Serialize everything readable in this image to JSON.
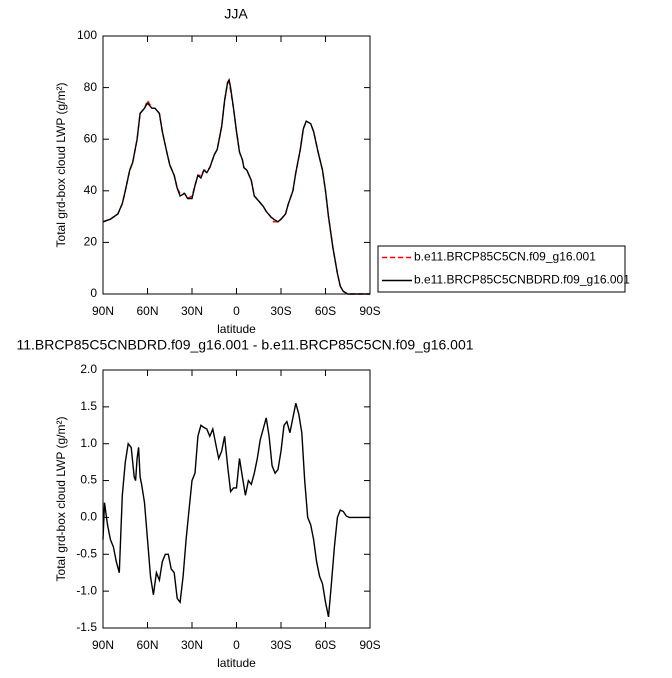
{
  "chart_data": [
    {
      "type": "line",
      "title": "JJA",
      "xlabel": "latitude",
      "ylabel": "Total grd-box cloud LWP (g/m²)",
      "x": [
        90,
        85,
        80,
        77,
        75,
        72,
        70,
        67,
        65,
        62,
        60,
        57,
        55,
        52,
        50,
        47,
        45,
        42,
        40,
        38,
        35,
        33,
        30,
        28,
        26,
        24,
        22,
        20,
        18,
        15,
        13,
        10,
        8,
        6,
        5,
        4,
        2,
        0,
        -2,
        -4,
        -5,
        -7,
        -10,
        -12,
        -15,
        -18,
        -20,
        -23,
        -25,
        -28,
        -30,
        -33,
        -35,
        -38,
        -40,
        -43,
        -45,
        -47,
        -50,
        -52,
        -55,
        -58,
        -60,
        -62,
        -65,
        -68,
        -70,
        -72,
        -75,
        -80,
        -90
      ],
      "series": [
        {
          "name": "b.e11.BRCP85C5CN.f09_g16.001",
          "color": "#ff0000",
          "dash": true,
          "values": [
            28,
            29,
            31,
            35,
            40,
            48,
            51,
            60,
            70,
            72,
            75,
            72,
            72,
            70,
            63,
            55,
            50,
            46,
            41,
            39,
            39,
            37,
            38,
            42,
            46,
            46,
            48,
            48,
            49,
            54,
            56,
            65,
            75,
            82,
            82,
            79,
            72,
            63,
            55,
            52,
            49,
            48,
            44,
            38,
            36,
            34,
            32,
            30,
            28,
            28,
            29,
            31,
            35,
            40,
            47,
            56,
            64,
            67,
            66,
            63,
            55,
            48,
            40,
            30,
            18,
            8,
            3,
            1,
            0,
            0,
            0
          ]
        },
        {
          "name": "b.e11.BRCP85C5CNBDRD.f09_g16.001",
          "color": "#000000",
          "dash": false,
          "values": [
            28,
            29,
            31,
            35,
            40,
            48,
            51,
            60,
            70,
            72,
            74,
            72,
            72,
            70,
            63,
            55,
            50,
            46,
            41,
            38,
            39,
            37,
            37,
            42,
            46,
            45,
            48,
            47,
            49,
            54,
            56,
            65,
            75,
            82,
            83,
            80,
            72,
            63,
            55,
            52,
            49,
            48,
            44,
            38,
            36,
            34,
            32,
            30,
            29,
            28,
            29,
            31,
            35,
            40,
            47,
            56,
            64,
            67,
            66,
            63,
            55,
            48,
            40,
            30,
            18,
            8,
            3,
            1,
            0,
            0,
            0
          ]
        }
      ],
      "xlim": [
        90,
        -90
      ],
      "xticks": [
        {
          "value": 90,
          "label": "90N"
        },
        {
          "value": 60,
          "label": "60N"
        },
        {
          "value": 30,
          "label": "30N"
        },
        0,
        {
          "value": -30,
          "label": "30S"
        },
        {
          "value": -60,
          "label": "60S"
        },
        {
          "value": -90,
          "label": "90S"
        }
      ],
      "ylim": [
        0,
        100
      ],
      "yticks": [
        0,
        20,
        40,
        60,
        80,
        100
      ],
      "legend": "right"
    },
    {
      "type": "line",
      "title": "11.BRCP85C5CNBDRD.f09_g16.001 - b.e11.BRCP85C5CN.f09_g16.001",
      "xlabel": "latitude",
      "ylabel": "Total grd-box cloud LWP (g/m²)",
      "x": [
        90,
        89,
        87,
        85,
        83,
        81,
        79,
        77,
        75,
        73,
        71,
        69,
        68,
        67,
        66,
        65,
        64,
        62,
        60,
        58,
        56,
        54,
        52,
        50,
        48,
        46,
        44,
        42,
        40,
        38,
        36,
        34,
        32,
        30,
        28,
        26,
        24,
        22,
        20,
        18,
        16,
        14,
        12,
        10,
        8,
        6,
        4,
        2,
        0,
        -2,
        -4,
        -6,
        -8,
        -10,
        -12,
        -14,
        -16,
        -18,
        -20,
        -22,
        -24,
        -26,
        -28,
        -30,
        -32,
        -34,
        -36,
        -38,
        -40,
        -42,
        -44,
        -46,
        -48,
        -50,
        -52,
        -54,
        -56,
        -58,
        -60,
        -62,
        -64,
        -66,
        -68,
        -70,
        -72,
        -74,
        -76,
        -80,
        -90
      ],
      "values": [
        -0.3,
        0.2,
        -0.1,
        -0.3,
        -0.4,
        -0.6,
        -0.75,
        0.3,
        0.75,
        1.0,
        0.95,
        0.55,
        0.5,
        0.8,
        0.95,
        0.55,
        0.45,
        0.2,
        -0.3,
        -0.8,
        -1.05,
        -0.75,
        -0.85,
        -0.6,
        -0.5,
        -0.5,
        -0.7,
        -0.75,
        -1.1,
        -1.15,
        -0.8,
        -0.3,
        0.1,
        0.5,
        0.6,
        1.1,
        1.25,
        1.22,
        1.2,
        1.1,
        1.2,
        1.0,
        0.8,
        0.9,
        1.1,
        0.7,
        0.35,
        0.4,
        0.4,
        0.8,
        0.55,
        0.3,
        0.5,
        0.45,
        0.6,
        0.8,
        1.05,
        1.2,
        1.35,
        1.1,
        0.7,
        0.6,
        0.65,
        0.9,
        1.25,
        1.3,
        1.15,
        1.35,
        1.55,
        1.4,
        1.15,
        0.5,
        0.0,
        -0.1,
        -0.3,
        -0.6,
        -0.8,
        -0.9,
        -1.15,
        -1.35,
        -0.9,
        -0.4,
        0.0,
        0.1,
        0.08,
        0.02,
        0.0,
        0.0,
        0.0
      ],
      "color": "#000000",
      "xlim": [
        90,
        -90
      ],
      "xticks": [
        {
          "value": 90,
          "label": "90N"
        },
        {
          "value": 60,
          "label": "60N"
        },
        {
          "value": 30,
          "label": "30N"
        },
        0,
        {
          "value": -30,
          "label": "30S"
        },
        {
          "value": -60,
          "label": "60S"
        },
        {
          "value": -90,
          "label": "90S"
        }
      ],
      "ylim": [
        -1.5,
        2.0
      ],
      "yticks": [
        {
          "value": -1.5,
          "label": "-1.5"
        },
        {
          "value": -1,
          "label": "-1.0"
        },
        {
          "value": -0.5,
          "label": "-0.5"
        },
        {
          "value": 0,
          "label": "0.0"
        },
        {
          "value": 0.5,
          "label": "0.5"
        },
        {
          "value": 1,
          "label": "1.0"
        },
        {
          "value": 1.5,
          "label": "1.5"
        },
        {
          "value": 2,
          "label": "2.0"
        }
      ]
    }
  ]
}
